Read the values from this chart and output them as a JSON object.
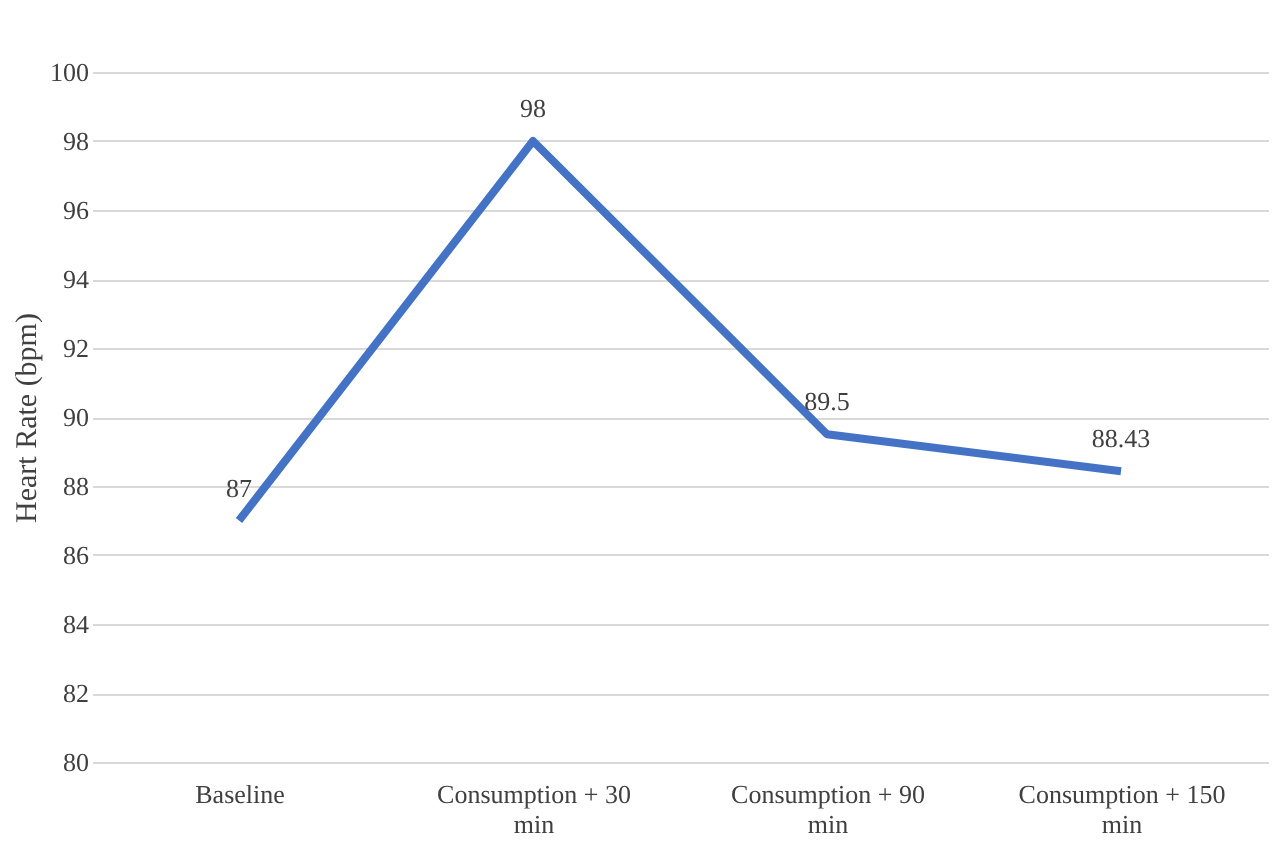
{
  "chart_data": {
    "type": "line",
    "ylabel": "Heart Rate (bpm)",
    "categories": [
      "Baseline",
      "Consumption + 30 min",
      "Consumption + 90 min",
      "Consumption + 150 min"
    ],
    "series": [
      {
        "color": "#4472c4",
        "values": [
          87,
          98,
          89.5,
          88.43
        ]
      }
    ],
    "ylim": [
      80,
      100
    ],
    "yticks": [
      80,
      82,
      84,
      86,
      88,
      90,
      92,
      94,
      96,
      98,
      100
    ],
    "grid": "y",
    "marker": "none",
    "line_style": "solid",
    "data_labels": true
  }
}
